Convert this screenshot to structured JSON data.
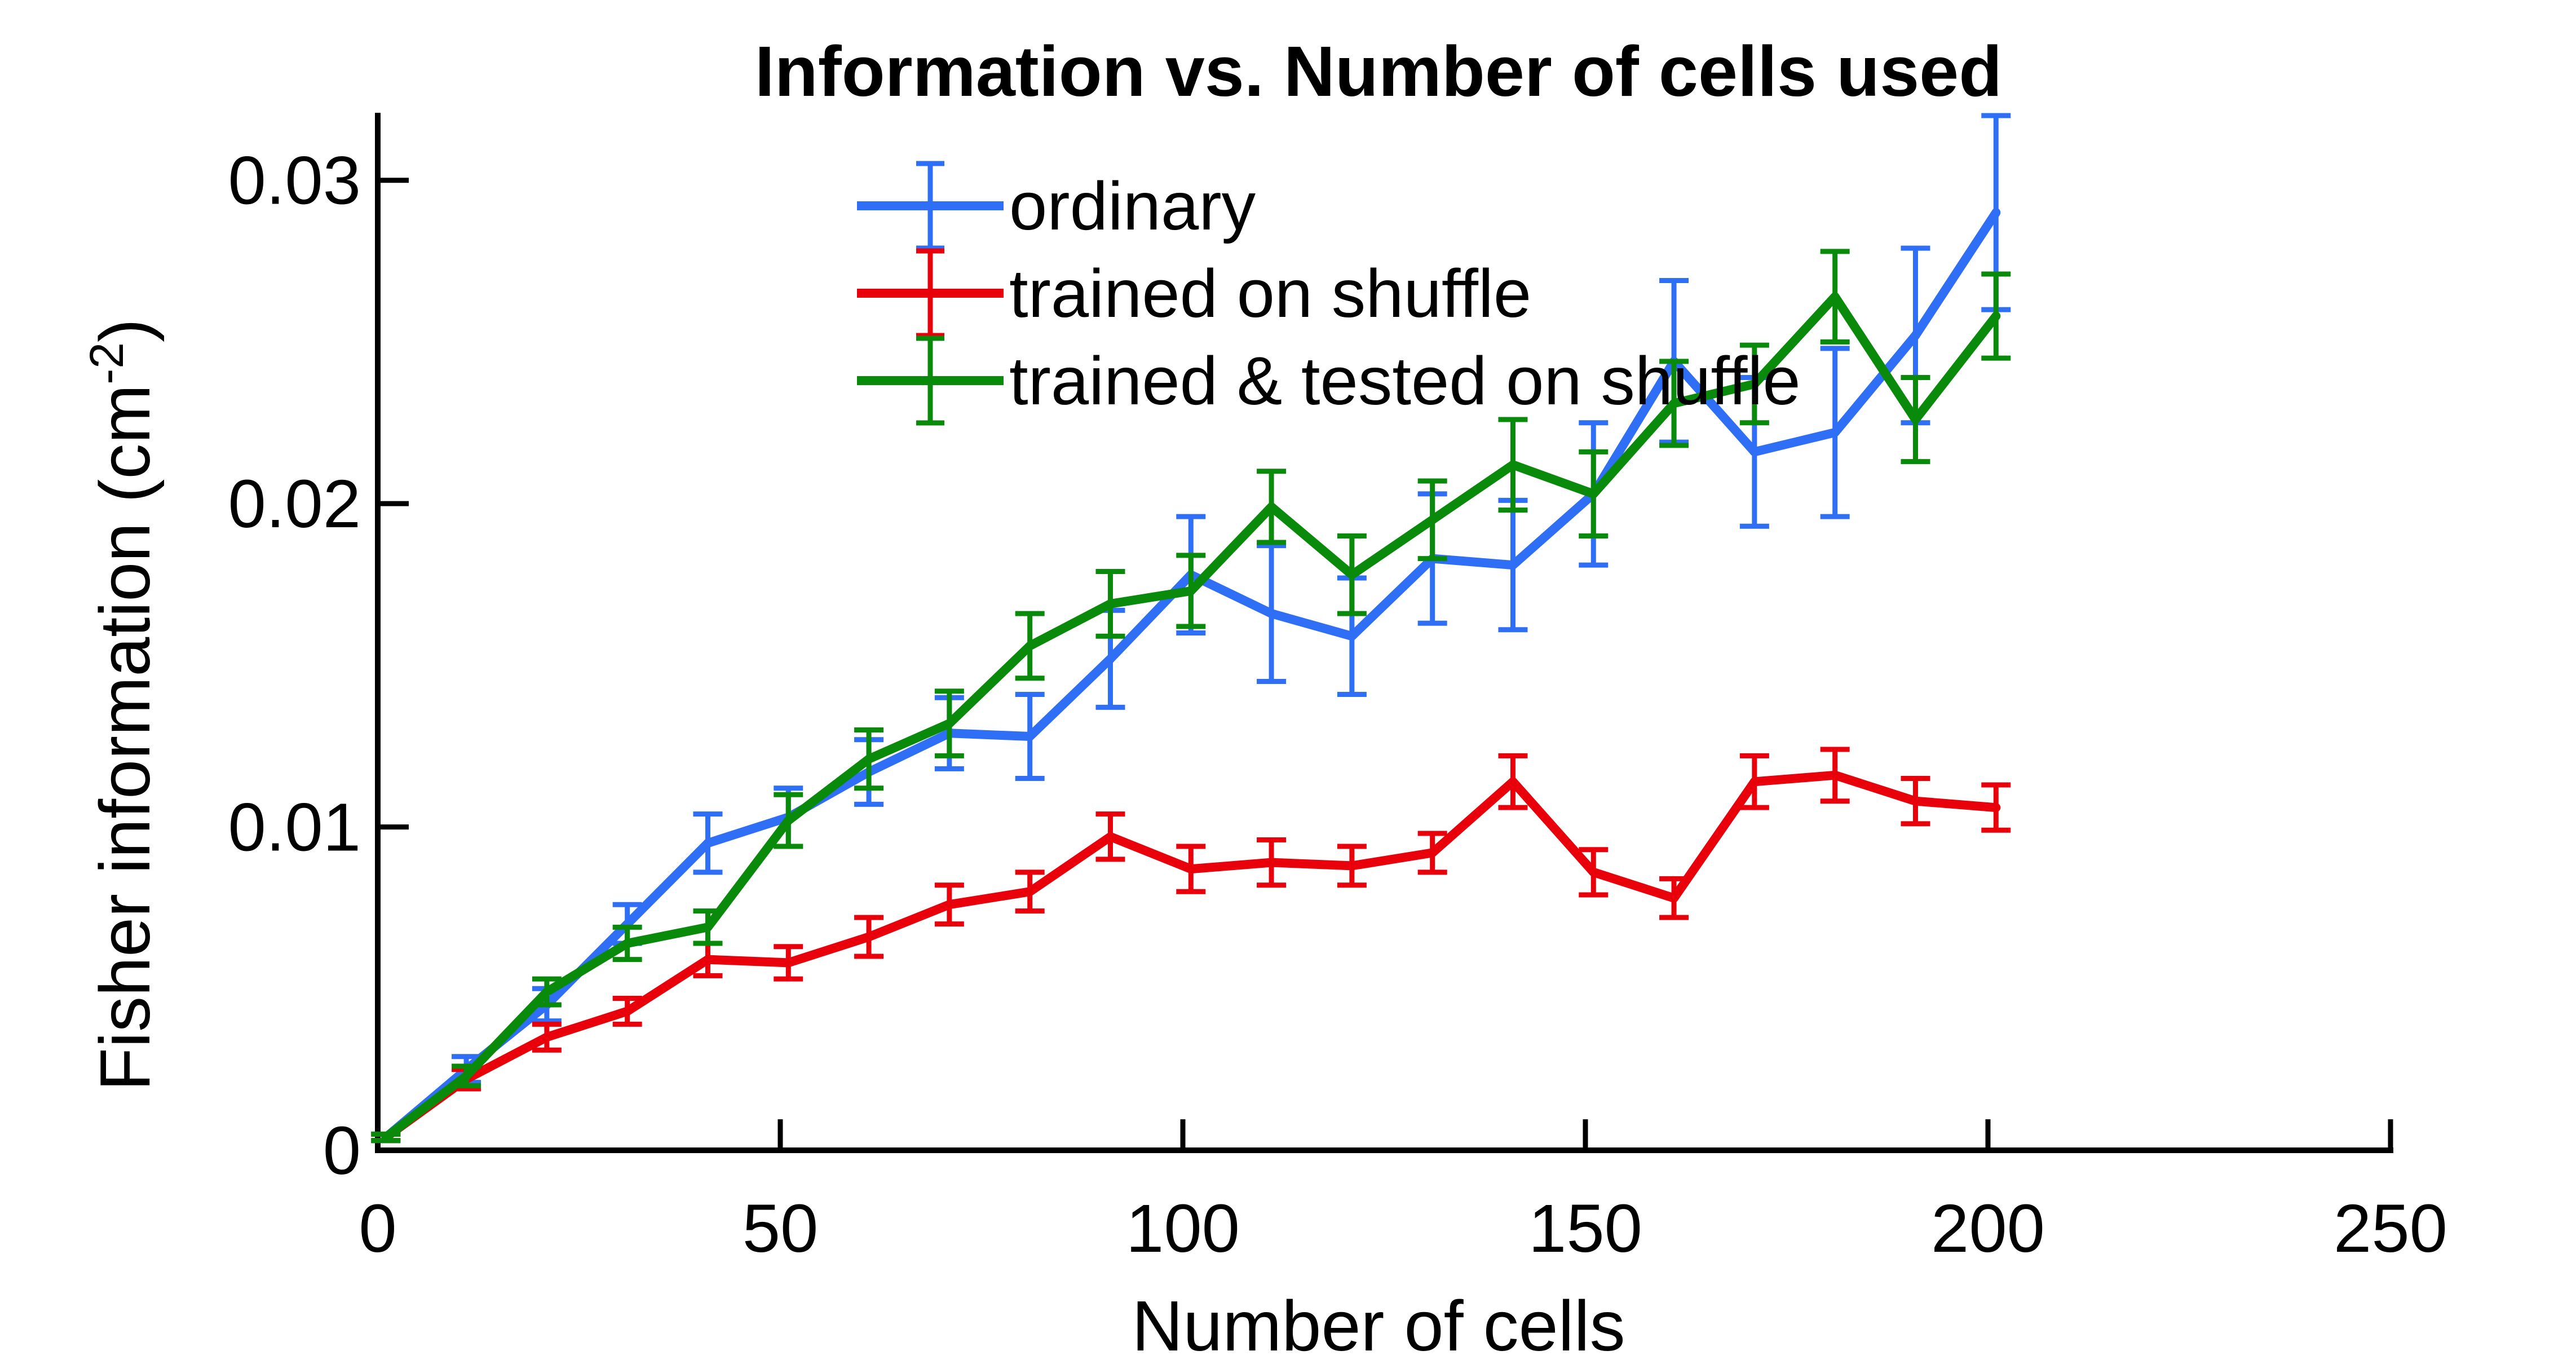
{
  "chart_data": {
    "type": "line",
    "title": "Information vs. Number of cells used",
    "xlabel": "Number of cells",
    "ylabel": "Fisher information (cm",
    "ylabel_exponent": "-2",
    "ylabel_close": ")",
    "xlim": [
      0,
      250
    ],
    "ylim": [
      0,
      0.032
    ],
    "xticks": [
      0,
      50,
      100,
      150,
      200,
      250
    ],
    "xtick_labels": [
      "0",
      "50",
      "100",
      "150",
      "200",
      "250"
    ],
    "yticks": [
      0,
      0.01,
      0.02,
      0.03
    ],
    "ytick_labels": [
      "0",
      "0.01",
      "0.02",
      "0.03"
    ],
    "grid": false,
    "legend_position": "top-center",
    "x": [
      1,
      11,
      21,
      31,
      41,
      51,
      61,
      71,
      81,
      91,
      101,
      111,
      121,
      131,
      141,
      151,
      161,
      171,
      181,
      191,
      201
    ],
    "series": [
      {
        "name": "ordinary",
        "color": "#2f6ff5",
        "values": [
          0.0004,
          0.0025,
          0.0045,
          0.007,
          0.0095,
          0.0103,
          0.0117,
          0.0129,
          0.0128,
          0.0152,
          0.0178,
          0.0166,
          0.0159,
          0.0183,
          0.0181,
          0.0203,
          0.0244,
          0.0216,
          0.0222,
          0.0252,
          0.029
        ],
        "errors": [
          0.0001,
          0.0004,
          0.0005,
          0.0006,
          0.0009,
          0.0009,
          0.001,
          0.0011,
          0.0013,
          0.0015,
          0.0018,
          0.0021,
          0.0018,
          0.002,
          0.002,
          0.0022,
          0.0025,
          0.0023,
          0.0026,
          0.0027,
          0.003
        ]
      },
      {
        "name": "trained on shuffle",
        "color": "#e8000b",
        "values": [
          0.0004,
          0.0022,
          0.0035,
          0.0043,
          0.0059,
          0.0058,
          0.0066,
          0.0076,
          0.008,
          0.0097,
          0.0087,
          0.0089,
          0.0088,
          0.0092,
          0.0114,
          0.0086,
          0.0078,
          0.0114,
          0.0116,
          0.0108,
          0.0106
        ],
        "errors": [
          0.0001,
          0.0003,
          0.0004,
          0.0004,
          0.0005,
          0.0005,
          0.0006,
          0.0006,
          0.0006,
          0.0007,
          0.0007,
          0.0007,
          0.0006,
          0.0006,
          0.0008,
          0.0007,
          0.0006,
          0.0008,
          0.0008,
          0.0007,
          0.0007
        ]
      },
      {
        "name": "trained & tested on shuffle",
        "color": "#0a8a0a",
        "values": [
          0.0004,
          0.0023,
          0.0049,
          0.0064,
          0.0069,
          0.0102,
          0.0121,
          0.0132,
          0.0156,
          0.0169,
          0.0173,
          0.0199,
          0.0178,
          0.0195,
          0.0212,
          0.0203,
          0.0231,
          0.0237,
          0.0264,
          0.0226,
          0.0258
        ],
        "errors": [
          0.0001,
          0.0003,
          0.0004,
          0.0005,
          0.0005,
          0.0008,
          0.0009,
          0.001,
          0.001,
          0.001,
          0.0011,
          0.0011,
          0.0012,
          0.0012,
          0.0014,
          0.0013,
          0.0013,
          0.0012,
          0.0014,
          0.0013,
          0.0013
        ]
      }
    ]
  }
}
